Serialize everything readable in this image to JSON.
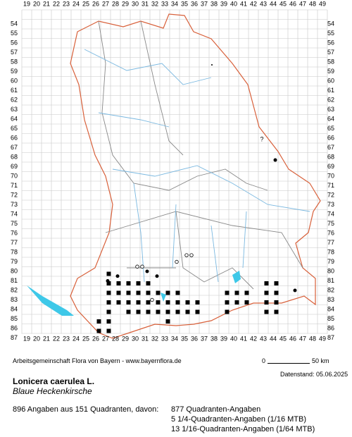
{
  "map": {
    "columns": [
      19,
      20,
      21,
      22,
      23,
      24,
      25,
      26,
      27,
      28,
      29,
      30,
      31,
      32,
      33,
      34,
      35,
      36,
      37,
      38,
      39,
      40,
      41,
      42,
      43,
      44,
      45,
      46,
      47,
      48,
      49
    ],
    "rows": [
      54,
      55,
      56,
      57,
      58,
      59,
      60,
      61,
      62,
      63,
      64,
      65,
      66,
      67,
      68,
      69,
      70,
      71,
      72,
      73,
      74,
      75,
      76,
      77,
      78,
      79,
      80,
      81,
      82,
      83,
      84,
      85,
      86,
      87
    ],
    "question_mark": "?"
  },
  "footer": {
    "credit": "Arbeitsgemeinschaft Flora von Bayern - www.bayernflora.de",
    "scale_start": "0",
    "scale_end": "50 km",
    "date": "Datenstand: 05.06.2025"
  },
  "species": {
    "name": "Lonicera caerulea L.",
    "common_name": "Blaue Heckenkirsche"
  },
  "statistics": {
    "summary": "896 Angaben aus 151 Quadranten, davon:",
    "lines": [
      "877 Quadranten-Angaben",
      "5 1/4-Quadranten-Angaben (1/16 MTB)",
      "13 1/16-Quadranten-Angaben (1/64 MTB)"
    ]
  }
}
